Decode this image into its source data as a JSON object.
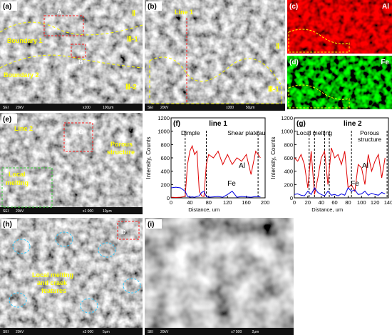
{
  "panels": {
    "a": {
      "label": "(a)",
      "annotations": [
        "A",
        "Ⅱ",
        "Ⅲ-1",
        "Boundary 1",
        "B",
        "Boundary 2",
        "Ⅲ-2"
      ],
      "footer": [
        "SEI",
        "20kV",
        "x100",
        "100μm"
      ]
    },
    "b": {
      "label": "(b)",
      "annotations": [
        "Line 1",
        "Ⅱ",
        "Ⅲ-1"
      ],
      "footer": [
        "SEI",
        "20kV",
        "x300",
        "50μm"
      ]
    },
    "c": {
      "label": "(c)",
      "element": "Al"
    },
    "d": {
      "label": "(d)",
      "element": "Fe"
    },
    "e": {
      "label": "(e)",
      "annotations": [
        "Line 2",
        "C",
        "Porous",
        "structure",
        "Local",
        "melting"
      ],
      "footer": [
        "SEI",
        "20kV",
        "x1 000",
        "10μm"
      ]
    },
    "h": {
      "label": "(h)",
      "annotations": [
        "D",
        "Local melting",
        "and craek",
        "features"
      ],
      "footer": [
        "SEI",
        "20kV",
        "x3 000",
        "5μm"
      ]
    },
    "i": {
      "label": "(i)",
      "footer": [
        "SEI",
        "20kV",
        "x7 500",
        "2μm"
      ]
    }
  },
  "chart_data": [
    {
      "type": "line",
      "label": "(f)",
      "title": "line 1",
      "xlabel": "Distance, um",
      "ylabel": "Intensity, Counts",
      "notes": [
        "Dimple",
        "Shear plateau"
      ],
      "x": [
        0,
        10,
        20,
        30,
        35,
        40,
        45,
        50,
        55,
        60,
        65,
        70,
        75,
        80,
        90,
        100,
        110,
        120,
        130,
        140,
        150,
        160,
        170,
        180,
        190
      ],
      "series": [
        {
          "name": "Al",
          "color": "#e00000",
          "values": [
            10,
            5,
            10,
            20,
            500,
            700,
            780,
            650,
            700,
            100,
            30,
            20,
            500,
            650,
            600,
            700,
            500,
            650,
            500,
            600,
            550,
            650,
            350,
            700,
            600
          ]
        },
        {
          "name": "Fe",
          "color": "#0000e0",
          "values": [
            150,
            160,
            150,
            100,
            20,
            10,
            15,
            10,
            20,
            30,
            80,
            100,
            20,
            10,
            15,
            20,
            10,
            50,
            100,
            10,
            20,
            15,
            10,
            20,
            15
          ]
        }
      ],
      "vlines": [
        30,
        75,
        185
      ],
      "xlim": [
        0,
        200
      ],
      "xticks": [
        0,
        40,
        80,
        120,
        160,
        200
      ],
      "ylim": [
        0,
        1200
      ],
      "yticks": [
        0,
        200,
        400,
        600,
        800,
        1000,
        1200
      ]
    },
    {
      "type": "line",
      "label": "(g)",
      "title": "line 2",
      "xlabel": "Distance, um",
      "ylabel": "Intensity, Counts",
      "notes": [
        "Local melting",
        "Porous",
        "structure"
      ],
      "x": [
        0,
        5,
        10,
        15,
        20,
        25,
        30,
        35,
        40,
        45,
        50,
        55,
        60,
        65,
        70,
        75,
        80,
        85,
        90,
        95,
        100,
        105,
        110,
        115,
        120,
        125,
        130,
        135
      ],
      "series": [
        {
          "name": "Al",
          "color": "#e00000",
          "values": [
            600,
            550,
            650,
            500,
            150,
            700,
            50,
            300,
            600,
            700,
            200,
            750,
            600,
            650,
            500,
            700,
            150,
            200,
            100,
            500,
            450,
            200,
            650,
            400,
            550,
            650,
            300,
            600
          ]
        },
        {
          "name": "Fe",
          "color": "#0000e0",
          "values": [
            50,
            60,
            40,
            30,
            100,
            50,
            150,
            80,
            50,
            30,
            100,
            40,
            50,
            30,
            60,
            40,
            150,
            100,
            120,
            50,
            60,
            100,
            40,
            70,
            50,
            40,
            80,
            60
          ]
        }
      ],
      "vlines": [
        22,
        30,
        45,
        52,
        85,
        138
      ],
      "xlim": [
        0,
        140
      ],
      "xticks": [
        0,
        20,
        40,
        60,
        80,
        100,
        120,
        140
      ],
      "ylim": [
        0,
        1200
      ],
      "yticks": [
        0,
        200,
        400,
        600,
        800,
        1000,
        1200
      ]
    }
  ]
}
